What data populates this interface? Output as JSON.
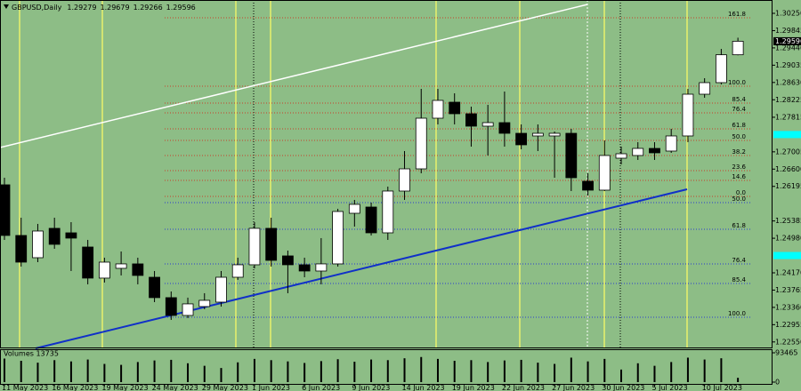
{
  "chart_data": {
    "type": "candlestick",
    "symbol": "GBPUSD,Daily",
    "categories": [
      "11 May 2023",
      null,
      null,
      "16 May 2023",
      null,
      null,
      "19 May 2023",
      null,
      null,
      "24 May 2023",
      null,
      null,
      "29 May 2023",
      null,
      null,
      "1 Jun 2023",
      null,
      null,
      "6 Jun 2023",
      null,
      null,
      "9 Jun 2023",
      null,
      null,
      "14 Jun 2023",
      null,
      null,
      "19 Jun 2023",
      null,
      null,
      "22 Jun 2023",
      null,
      null,
      "27 Jun 2023",
      null,
      null,
      "30 Jun 2023",
      null,
      null,
      "5 Jul 2023",
      null,
      null,
      "10 Jul 2023",
      null,
      null
    ],
    "open": [
      1.26232,
      1.25045,
      1.24524,
      1.25212,
      1.25107,
      1.24774,
      1.24046,
      1.24275,
      1.24379,
      1.24066,
      1.23588,
      1.23171,
      1.23379,
      1.23483,
      1.24066,
      1.24358,
      1.25212,
      1.24566,
      1.24358,
      1.24212,
      1.24379,
      1.25565,
      1.25711,
      1.25107,
      1.26086,
      1.26606,
      1.27793,
      1.28168,
      1.27897,
      1.27606,
      1.27689,
      1.27439,
      1.27377,
      1.27377,
      1.27439,
      1.26315,
      1.26107,
      1.26856,
      1.26919,
      1.27085,
      1.27023,
      1.27377,
      1.28355,
      1.28626,
      1.29279
    ],
    "high": [
      1.26398,
      1.25461,
      1.25316,
      1.25461,
      1.25357,
      1.24941,
      1.24524,
      1.2467,
      1.24524,
      1.24212,
      1.23733,
      1.23588,
      1.23692,
      1.24212,
      1.24524,
      1.25357,
      1.25461,
      1.24691,
      1.24524,
      1.24983,
      1.2567,
      1.25878,
      1.25815,
      1.2619,
      1.27023,
      1.2848,
      1.2848,
      1.28376,
      1.28064,
      1.28106,
      1.28418,
      1.27647,
      1.27647,
      1.27481,
      1.27543,
      1.26502,
      1.27273,
      1.27127,
      1.27231,
      1.27231,
      1.27543,
      1.2848,
      1.2873,
      1.29417,
      1.29679
    ],
    "low": [
      1.24941,
      1.24316,
      1.2442,
      1.24733,
      1.24212,
      1.239,
      1.23942,
      1.24108,
      1.239,
      1.23483,
      1.23067,
      1.23109,
      1.23317,
      1.23379,
      1.24004,
      1.24275,
      1.24316,
      1.23692,
      1.24066,
      1.239,
      1.24316,
      1.25253,
      1.25045,
      1.24941,
      1.25878,
      1.26502,
      1.27647,
      1.27647,
      1.27127,
      1.26919,
      1.27127,
      1.27065,
      1.27023,
      1.26398,
      1.26086,
      1.25982,
      1.26086,
      1.26711,
      1.26815,
      1.26815,
      1.26981,
      1.27231,
      1.28272,
      1.28584,
      1.29266
    ],
    "close": [
      1.25045,
      1.2442,
      1.25149,
      1.24837,
      1.24983,
      1.24046,
      1.2442,
      1.24379,
      1.24108,
      1.23588,
      1.23171,
      1.23442,
      1.23525,
      1.24066,
      1.24358,
      1.25212,
      1.24462,
      1.24358,
      1.24212,
      1.24379,
      1.25607,
      1.25774,
      1.25107,
      1.26086,
      1.26606,
      1.27793,
      1.2821,
      1.27897,
      1.27606,
      1.27689,
      1.27439,
      1.27169,
      1.27439,
      1.27439,
      1.26398,
      1.26107,
      1.26919,
      1.2696,
      1.27085,
      1.26981,
      1.27377,
      1.28355,
      1.28626,
      1.29279,
      1.29596
    ],
    "volume_title": "Volumes 13735",
    "volumes": [
      75000,
      68000,
      62000,
      70000,
      66000,
      72000,
      58000,
      55000,
      64000,
      69000,
      71000,
      60000,
      52000,
      45000,
      63000,
      74000,
      70000,
      66000,
      61000,
      67000,
      73000,
      65000,
      72000,
      70000,
      76000,
      80000,
      74000,
      68000,
      70000,
      64000,
      69000,
      71000,
      62000,
      58000,
      78000,
      66000,
      74000,
      40000,
      60000,
      52000,
      64000,
      78000,
      72000,
      76000,
      13735
    ],
    "volume_ylim": [
      0,
      93465
    ],
    "volume_ticks": [
      0,
      93465
    ],
    "ylim": [
      1.224,
      1.305
    ],
    "yticks": [
      {
        "value": 1.3025,
        "label": "1.30250"
      },
      1.29845,
      {
        "value": 1.2944,
        "label": "1.29440"
      },
      1.29035,
      {
        "value": 1.2863,
        "label": "1.28630"
      },
      1.28225,
      1.27815,
      1.27005,
      {
        "value": 1.266,
        "label": "1.26600"
      },
      1.26195,
      1.25385,
      {
        "value": 1.2498,
        "label": "1.24980"
      },
      {
        "value": 1.2417,
        "label": "1.24170"
      },
      1.23765,
      {
        "value": 1.2336,
        "label": "1.23360"
      },
      1.22955,
      {
        "value": 1.2255,
        "label": "1.22550"
      }
    ],
    "alert_levels": [
      1.2741,
      1.24575
    ],
    "fib_levels": [
      {
        "label": "161.8",
        "value": 1.30146,
        "color": "#c8402a"
      },
      {
        "label": "100.0",
        "value": 1.28543,
        "color": "#c8402a"
      },
      {
        "label": "85.4",
        "value": 1.28147,
        "color": "#c8402a"
      },
      {
        "label": "76.4",
        "value": 1.27918,
        "color": "#c8402a"
      },
      {
        "label": "61.8",
        "value": 1.27543,
        "color": "#c8402a"
      },
      {
        "label": "50.0",
        "value": 1.27273,
        "color": "#c8402a"
      },
      {
        "label": "38.2",
        "value": 1.26919,
        "color": "#c8402a"
      },
      {
        "label": "23.6",
        "value": 1.26565,
        "color": "#c8402a"
      },
      {
        "label": "14.6",
        "value": 1.26336,
        "color": "#c8402a"
      },
      {
        "label": "0.0",
        "value": 1.25961,
        "color": "#c8402a"
      },
      {
        "label": "50.0",
        "value": 1.25815,
        "color": "#2a3ad0"
      },
      {
        "label": "61.8",
        "value": 1.25191,
        "color": "#2a3ad0"
      },
      {
        "label": "76.4",
        "value": 1.24379,
        "color": "#2a3ad0"
      },
      {
        "label": "85.4",
        "value": 1.23921,
        "color": "#2a3ad0"
      },
      {
        "label": "100.0",
        "value": 1.2313,
        "color": "#2a3ad0"
      }
    ]
  }
}
